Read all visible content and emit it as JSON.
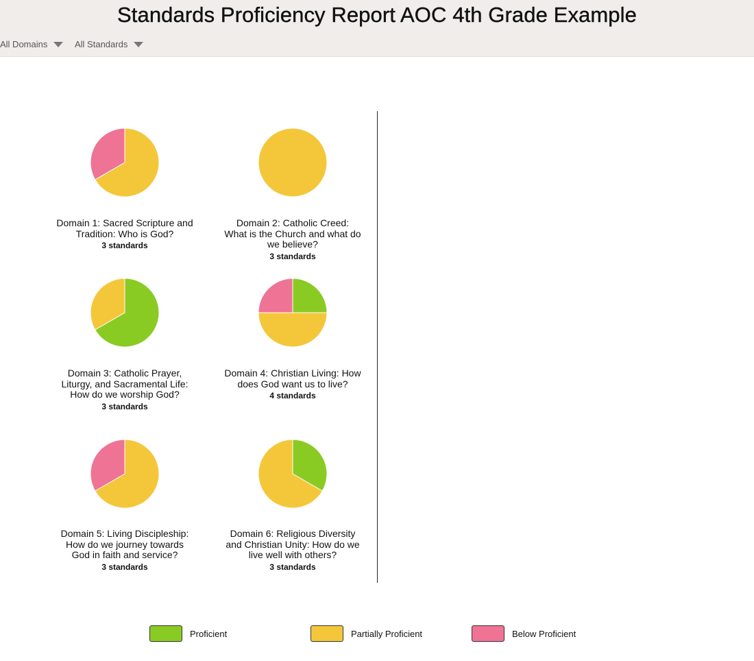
{
  "header": {
    "title": "Standards Proficiency Report AOC 4th Grade Example",
    "filters": [
      "All Domains",
      "All Standards"
    ]
  },
  "colors": {
    "proficient": "#8acb23",
    "partial": "#f4c73a",
    "below": "#ef7395",
    "header_bg": "#f0edeb"
  },
  "legend": [
    {
      "key": "proficient",
      "label": "Proficient"
    },
    {
      "key": "partial",
      "label": "Partially Proficient"
    },
    {
      "key": "below",
      "label": "Below Proficient"
    }
  ],
  "chart_data": [
    {
      "type": "pie",
      "title": "Domain 1: Sacred Scripture and Tradition: Who is God?",
      "subtitle": "3 standards",
      "categories": [
        "Proficient",
        "Partially Proficient",
        "Below Proficient"
      ],
      "values": [
        0,
        2,
        1
      ]
    },
    {
      "type": "pie",
      "title": "Domain 2: Catholic Creed: What is the Church and what do we believe?",
      "subtitle": "3 standards",
      "categories": [
        "Proficient",
        "Partially Proficient",
        "Below Proficient"
      ],
      "values": [
        0,
        3,
        0
      ]
    },
    {
      "type": "pie",
      "title": "Domain 3: Catholic Prayer, Liturgy, and Sacramental Life: How do we worship God?",
      "subtitle": "3 standards",
      "categories": [
        "Proficient",
        "Partially Proficient",
        "Below Proficient"
      ],
      "values": [
        2,
        1,
        0
      ]
    },
    {
      "type": "pie",
      "title": "Domain 4: Christian Living: How does God want us to live?",
      "subtitle": "4 standards",
      "categories": [
        "Proficient",
        "Partially Proficient",
        "Below Proficient"
      ],
      "values": [
        1,
        2,
        1
      ]
    },
    {
      "type": "pie",
      "title": "Domain 5: Living Discipleship: How do we journey towards God in faith and service?",
      "subtitle": "3 standards",
      "categories": [
        "Proficient",
        "Partially Proficient",
        "Below Proficient"
      ],
      "values": [
        0,
        2,
        1
      ]
    },
    {
      "type": "pie",
      "title": "Domain 6: Religious Diversity and Christian Unity: How do we live well with others?",
      "subtitle": "3 standards",
      "categories": [
        "Proficient",
        "Partially Proficient",
        "Below Proficient"
      ],
      "values": [
        1,
        2,
        0
      ]
    }
  ]
}
